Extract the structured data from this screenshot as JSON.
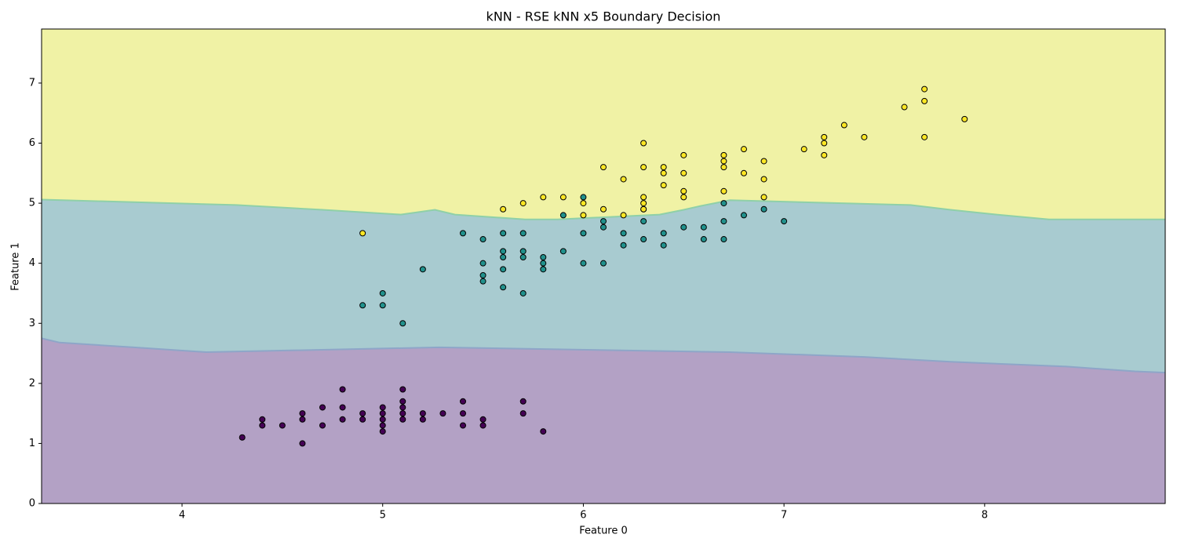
{
  "chart_data": {
    "type": "scatter",
    "title": "kNN - RSE kNN x5 Boundary Decision",
    "x_label": "Feature 0",
    "y_label": "Feature 1",
    "xlim": [
      3.3,
      8.9
    ],
    "ylim": [
      0,
      7.9
    ],
    "xticks": [
      4,
      5,
      6,
      7,
      8
    ],
    "yticks": [
      0,
      1,
      2,
      3,
      4,
      5,
      6,
      7
    ],
    "region_colors": [
      "#b3a1c5",
      "#a8cbd0",
      "#f0f2a5"
    ],
    "boundaries": [
      {
        "x": [
          3.3,
          3.39,
          3.76,
          4.12,
          5.28,
          6.73,
          7.4,
          7.83,
          8.41,
          8.75,
          8.9
        ],
        "y": [
          2.75,
          2.68,
          2.6,
          2.52,
          2.6,
          2.52,
          2.44,
          2.36,
          2.28,
          2.2,
          2.18
        ]
      },
      {
        "x": [
          3.3,
          4.27,
          4.7,
          5.09,
          5.26,
          5.36,
          5.71,
          5.87,
          6.38,
          6.5,
          6.58,
          6.73,
          7.63,
          7.83,
          8.06,
          8.32,
          8.9
        ],
        "y": [
          5.06,
          4.97,
          4.89,
          4.81,
          4.89,
          4.81,
          4.73,
          4.73,
          4.81,
          4.89,
          4.95,
          5.05,
          4.97,
          4.89,
          4.81,
          4.73,
          4.73
        ]
      }
    ],
    "series": [
      {
        "color": "#440154",
        "x": [
          4.3,
          4.4,
          4.4,
          4.5,
          4.6,
          4.6,
          4.6,
          4.7,
          4.7,
          4.8,
          4.8,
          4.8,
          4.9,
          4.9,
          5.0,
          5.0,
          5.0,
          5.0,
          5.0,
          5.1,
          5.1,
          5.1,
          5.1,
          5.1,
          5.2,
          5.2,
          5.3,
          5.4,
          5.4,
          5.4,
          5.5,
          5.5,
          5.7,
          5.7,
          5.8
        ],
        "y": [
          1.1,
          1.4,
          1.3,
          1.3,
          1.5,
          1.4,
          1.0,
          1.6,
          1.3,
          1.9,
          1.6,
          1.4,
          1.5,
          1.4,
          1.6,
          1.5,
          1.4,
          1.3,
          1.2,
          1.9,
          1.7,
          1.6,
          1.5,
          1.4,
          1.5,
          1.4,
          1.5,
          1.7,
          1.5,
          1.3,
          1.4,
          1.3,
          1.7,
          1.5,
          1.2
        ]
      },
      {
        "color": "#21918c",
        "x": [
          4.9,
          5.0,
          5.0,
          5.1,
          5.2,
          5.4,
          5.5,
          5.5,
          5.5,
          5.5,
          5.6,
          5.6,
          5.6,
          5.6,
          5.6,
          5.7,
          5.7,
          5.7,
          5.7,
          5.8,
          5.8,
          5.8,
          5.9,
          5.9,
          6.0,
          6.0,
          6.0,
          6.1,
          6.1,
          6.1,
          6.2,
          6.2,
          6.3,
          6.3,
          6.3,
          6.4,
          6.4,
          6.5,
          6.6,
          6.6,
          6.7,
          6.7,
          6.7,
          6.8,
          6.9,
          7.0
        ],
        "y": [
          3.3,
          3.5,
          3.3,
          3.0,
          3.9,
          4.5,
          4.4,
          4.0,
          3.8,
          3.7,
          4.5,
          4.2,
          4.1,
          3.9,
          3.6,
          4.5,
          4.2,
          4.1,
          3.5,
          4.1,
          4.0,
          3.9,
          4.8,
          4.2,
          5.1,
          4.5,
          4.0,
          4.7,
          4.6,
          4.0,
          4.5,
          4.3,
          4.9,
          4.7,
          4.4,
          4.5,
          4.3,
          4.6,
          4.6,
          4.4,
          5.0,
          4.7,
          4.4,
          4.8,
          4.9,
          4.7
        ]
      },
      {
        "color": "#fde725",
        "x": [
          4.9,
          5.6,
          5.7,
          5.8,
          5.9,
          6.0,
          6.0,
          6.1,
          6.1,
          6.2,
          6.2,
          6.3,
          6.3,
          6.3,
          6.3,
          6.3,
          6.4,
          6.4,
          6.4,
          6.5,
          6.5,
          6.5,
          6.5,
          6.7,
          6.7,
          6.7,
          6.7,
          6.8,
          6.8,
          6.9,
          6.9,
          6.9,
          7.1,
          7.2,
          7.2,
          7.2,
          7.3,
          7.4,
          7.6,
          7.7,
          7.7,
          7.7,
          7.9
        ],
        "y": [
          4.5,
          4.9,
          5.0,
          5.1,
          5.1,
          5.0,
          4.8,
          5.6,
          4.9,
          5.4,
          4.8,
          6.0,
          5.6,
          5.1,
          5.0,
          4.9,
          5.6,
          5.5,
          5.3,
          5.8,
          5.5,
          5.2,
          5.1,
          5.8,
          5.7,
          5.6,
          5.2,
          5.9,
          5.5,
          5.7,
          5.4,
          5.1,
          5.9,
          6.1,
          6.0,
          5.8,
          6.3,
          6.1,
          6.6,
          6.9,
          6.7,
          6.1,
          6.4
        ]
      }
    ]
  }
}
